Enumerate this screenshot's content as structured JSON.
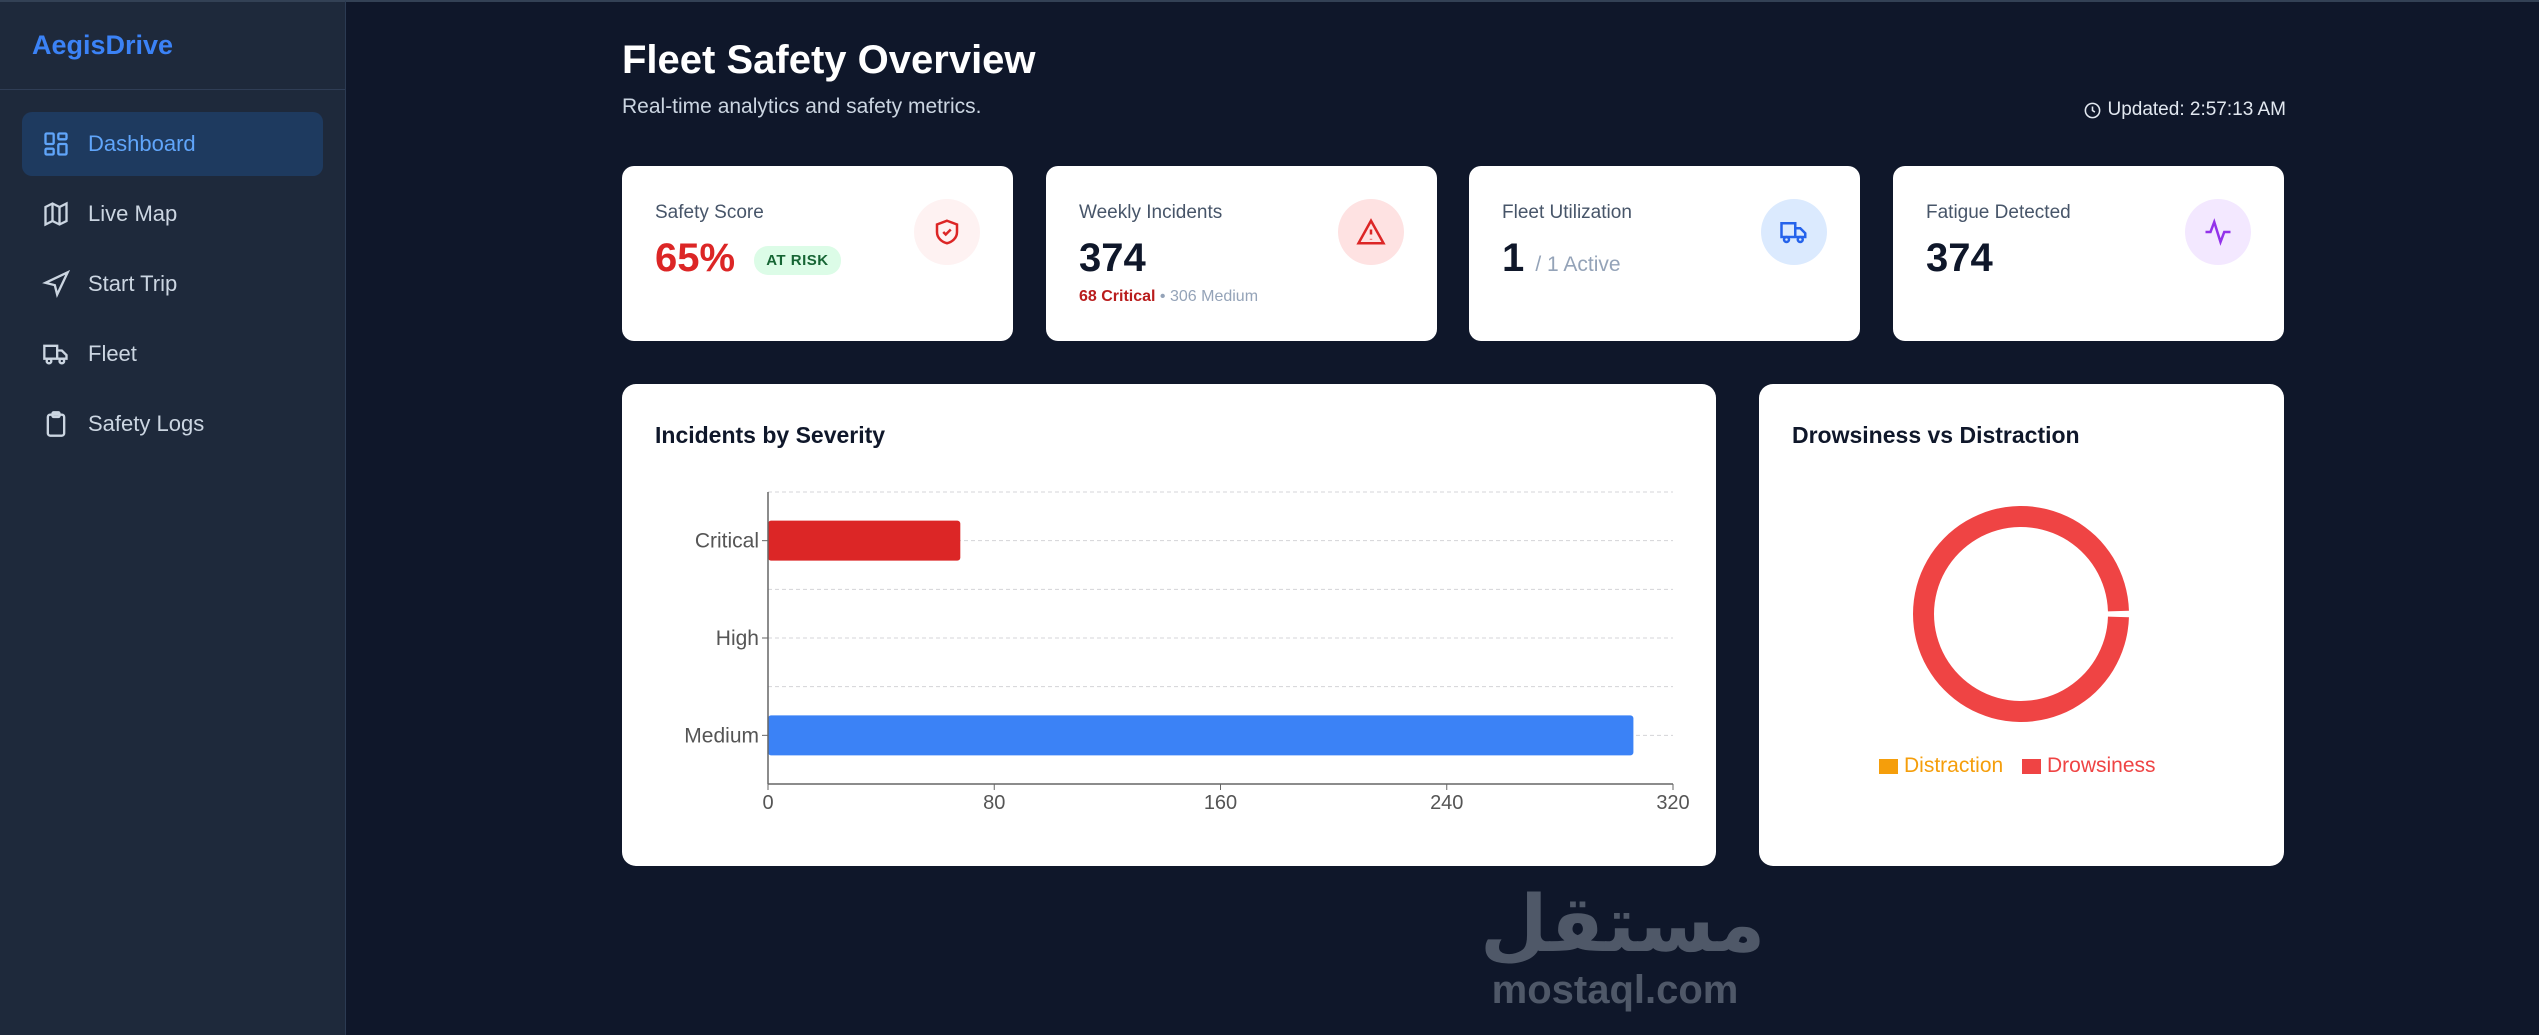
{
  "brand": "AegisDrive",
  "sidebar": {
    "items": [
      {
        "label": "Dashboard",
        "icon": "dashboard-icon",
        "active": true
      },
      {
        "label": "Live Map",
        "icon": "map-icon"
      },
      {
        "label": "Start Trip",
        "icon": "navigation-icon"
      },
      {
        "label": "Fleet",
        "icon": "truck-icon"
      },
      {
        "label": "Safety Logs",
        "icon": "clipboard-icon"
      }
    ]
  },
  "header": {
    "title": "Fleet Safety Overview",
    "subtitle": "Real-time analytics and safety metrics.",
    "updated": "Updated: 2:57:13 AM"
  },
  "cards": {
    "safety": {
      "label": "Safety Score",
      "value": "65%",
      "badge": "AT RISK",
      "icon": "shield-check-icon"
    },
    "incidents": {
      "label": "Weekly Incidents",
      "value": "374",
      "critical": "68 Critical",
      "separator": " • ",
      "medium": "306 Medium",
      "icon": "alert-triangle-icon"
    },
    "utilization": {
      "label": "Fleet Utilization",
      "value": "1",
      "suffix": "/ 1 Active",
      "icon": "truck-icon"
    },
    "fatigue": {
      "label": "Fatigue Detected",
      "value": "374",
      "icon": "activity-icon"
    }
  },
  "colors": {
    "critical": "#dc2626",
    "medium": "#3b82f6",
    "distraction": "#f59e0b",
    "drowsiness": "#ef4444"
  },
  "chart_data": [
    {
      "type": "bar",
      "orientation": "horizontal",
      "title": "Incidents by Severity",
      "categories": [
        "Critical",
        "High",
        "Medium"
      ],
      "values": [
        68,
        0,
        306
      ],
      "xlim": [
        0,
        320
      ],
      "xticks": [
        "0",
        "80",
        "160",
        "240",
        "320"
      ],
      "grid": true
    },
    {
      "type": "pie",
      "title": "Drowsiness vs Distraction",
      "labels": [
        "Distraction",
        "Drowsiness"
      ],
      "values": [
        0,
        374
      ],
      "legend": "bottom"
    }
  ],
  "watermark": {
    "arabic": "مستقل",
    "latin": "mostaql.com"
  }
}
